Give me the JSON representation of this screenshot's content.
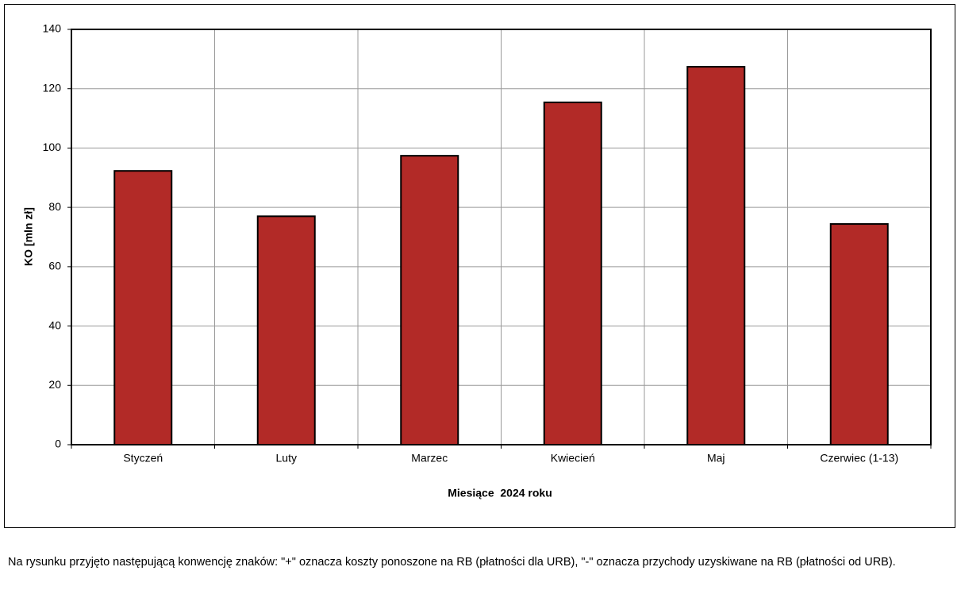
{
  "chart_data": {
    "type": "bar",
    "x_label": "Miesiące  2024 roku",
    "y_label": "KO [mln zł]",
    "categories": [
      "Styczeń",
      "Luty",
      "Marzec",
      "Kwiecień",
      "Maj",
      "Czerwiec (1-13)"
    ],
    "values": [
      92.3,
      77,
      97.4,
      115.4,
      127.4,
      74.4
    ],
    "color": "#b22a27",
    "ylim": [
      0,
      140
    ],
    "yticks": [
      0,
      20,
      40,
      60,
      80,
      100,
      120,
      140
    ],
    "grid": true
  },
  "note": "Na rysunku przyjęto następującą konwencję znaków: \"+\" oznacza koszty ponoszone na RB (płatności dla URB), \"-\" oznacza przychody uzyskiwane na RB (płatności od URB)."
}
